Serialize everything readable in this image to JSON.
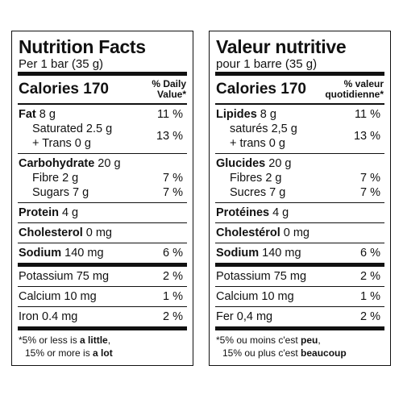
{
  "panels": [
    {
      "title": "Nutrition Facts",
      "serving": "Per 1 bar (35 g)",
      "calories": "Calories 170",
      "dv_header": [
        "% Daily",
        "Value*"
      ],
      "sections": [
        {
          "rows": [
            {
              "name": "Fat",
              "amount": "8 g",
              "dv": "11 %"
            },
            {
              "lines": [
                "Saturated 2.5 g",
                "+ Trans 0 g"
              ],
              "dv": "13 %"
            }
          ]
        },
        {
          "rows": [
            {
              "name": "Carbohydrate",
              "amount": "20 g"
            },
            {
              "text": "Fibre 2 g",
              "dv": "7 %"
            },
            {
              "text": "Sugars 7 g",
              "dv": "7 %"
            }
          ]
        },
        {
          "rows": [
            {
              "name": "Protein",
              "amount": "4 g"
            }
          ]
        },
        {
          "rows": [
            {
              "name": "Cholesterol",
              "amount": "0 mg"
            }
          ]
        },
        {
          "rows": [
            {
              "name": "Sodium",
              "amount": "140 mg",
              "dv": "6 %"
            }
          ]
        },
        {
          "rows": [
            {
              "plain": "Potassium 75 mg",
              "dv": "2 %"
            }
          ]
        },
        {
          "rows": [
            {
              "plain": "Calcium 10 mg",
              "dv": "1 %"
            }
          ]
        },
        {
          "rows": [
            {
              "plain": "Iron 0.4 mg",
              "dv": "2 %"
            }
          ]
        }
      ],
      "footnote": [
        [
          {
            "t": "*5% or less is "
          },
          {
            "b": "a little"
          },
          {
            "t": ","
          }
        ],
        [
          {
            "t": "15% or more is "
          },
          {
            "b": "a lot"
          }
        ]
      ]
    },
    {
      "title": "Valeur nutritive",
      "serving": "pour 1 barre (35 g)",
      "calories": "Calories 170",
      "dv_header": [
        "% valeur",
        "quotidienne*"
      ],
      "sections": [
        {
          "rows": [
            {
              "name": "Lipides",
              "amount": "8 g",
              "dv": "11 %"
            },
            {
              "lines": [
                "saturés 2,5 g",
                "+ trans 0 g"
              ],
              "dv": "13 %"
            }
          ]
        },
        {
          "rows": [
            {
              "name": "Glucides",
              "amount": "20 g"
            },
            {
              "text": "Fibres 2 g",
              "dv": "7 %"
            },
            {
              "text": "Sucres 7 g",
              "dv": "7 %"
            }
          ]
        },
        {
          "rows": [
            {
              "name": "Protéines",
              "amount": "4 g"
            }
          ]
        },
        {
          "rows": [
            {
              "name": "Cholestérol",
              "amount": "0 mg"
            }
          ]
        },
        {
          "rows": [
            {
              "name": "Sodium",
              "amount": "140 mg",
              "dv": "6 %"
            }
          ]
        },
        {
          "rows": [
            {
              "plain": "Potassium 75 mg",
              "dv": "2 %"
            }
          ]
        },
        {
          "rows": [
            {
              "plain": "Calcium 10 mg",
              "dv": "1 %"
            }
          ]
        },
        {
          "rows": [
            {
              "plain": "Fer 0,4 mg",
              "dv": "2 %"
            }
          ]
        }
      ],
      "footnote": [
        [
          {
            "t": "*5% ou moins c'est "
          },
          {
            "b": "peu"
          },
          {
            "t": ","
          }
        ],
        [
          {
            "t": "15% ou plus c'est "
          },
          {
            "b": "beaucoup"
          }
        ]
      ]
    }
  ]
}
